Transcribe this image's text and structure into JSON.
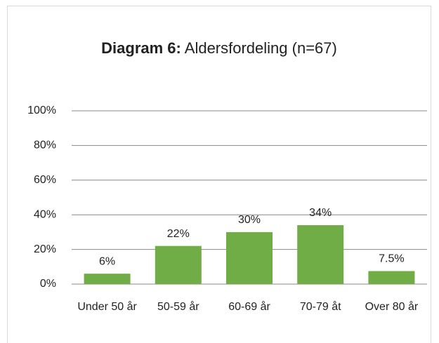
{
  "chart_data": {
    "type": "bar",
    "title_bold": "Diagram 6:",
    "title": "Aldersfordeling (n=67)",
    "categories": [
      "Under 50 år",
      "50-59 år",
      "60-69 år",
      "70-79 åt",
      "Over 80 år"
    ],
    "values": [
      6,
      22,
      30,
      34,
      7.5
    ],
    "value_labels": [
      "6%",
      "22%",
      "30%",
      "34%",
      "7.5%"
    ],
    "color": "#70ad47",
    "ylim": [
      0,
      100
    ],
    "yticks": [
      {
        "value": 0,
        "label": "0%"
      },
      {
        "value": 20,
        "label": "20%"
      },
      {
        "value": 40,
        "label": "40%"
      },
      {
        "value": 60,
        "label": "60%"
      },
      {
        "value": 80,
        "label": "80%"
      },
      {
        "value": 100,
        "label": "100%"
      }
    ],
    "grid": true
  }
}
